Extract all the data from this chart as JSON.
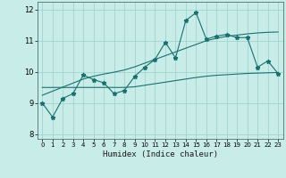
{
  "xlabel": "Humidex (Indice chaleur)",
  "xlim": [
    -0.5,
    23.5
  ],
  "ylim": [
    7.85,
    12.25
  ],
  "yticks": [
    8,
    9,
    10,
    11,
    12
  ],
  "xticks": [
    0,
    1,
    2,
    3,
    4,
    5,
    6,
    7,
    8,
    9,
    10,
    11,
    12,
    13,
    14,
    15,
    16,
    17,
    18,
    19,
    20,
    21,
    22,
    23
  ],
  "bg_color": "#c8ece8",
  "grid_color": "#a0d4ce",
  "line_color": "#1a7070",
  "main_y": [
    9.0,
    8.55,
    9.15,
    9.3,
    9.9,
    9.75,
    9.65,
    9.3,
    9.4,
    9.85,
    10.15,
    10.4,
    10.95,
    10.45,
    11.65,
    11.9,
    11.05,
    11.15,
    11.2,
    11.1,
    11.1,
    10.15,
    10.35,
    9.95
  ],
  "regression_y": [
    9.25,
    9.38,
    9.51,
    9.64,
    9.77,
    9.86,
    9.93,
    9.99,
    10.06,
    10.16,
    10.28,
    10.4,
    10.52,
    10.64,
    10.76,
    10.88,
    11.0,
    11.08,
    11.14,
    11.18,
    11.22,
    11.25,
    11.27,
    11.28
  ],
  "flat_y": [
    9.5,
    9.5,
    9.5,
    9.5,
    9.5,
    9.5,
    9.5,
    9.5,
    9.5,
    9.52,
    9.57,
    9.62,
    9.67,
    9.72,
    9.77,
    9.82,
    9.86,
    9.89,
    9.91,
    9.93,
    9.95,
    9.96,
    9.97,
    9.98
  ]
}
